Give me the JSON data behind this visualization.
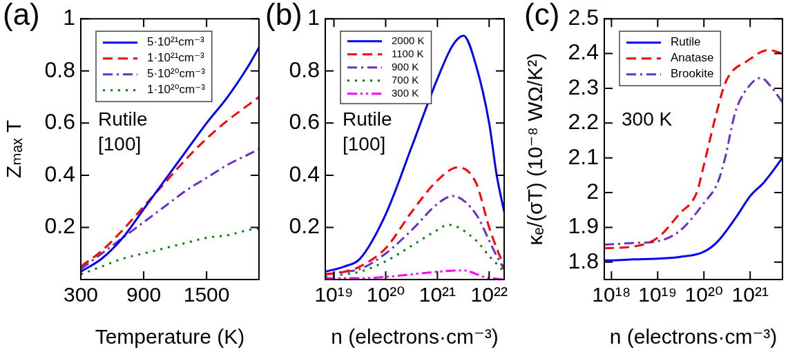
{
  "chart_data": [
    {
      "type": "line",
      "title": "(a)",
      "xlabel": "Temperature (K)",
      "ylabel": "Zₘₐₓ T",
      "annotations": [
        "Rutile",
        "[100]"
      ],
      "legend": "top left",
      "x": [
        300,
        500,
        700,
        900,
        1100,
        1300,
        1500,
        1700,
        1900,
        2000
      ],
      "series": [
        {
          "name": "5·10²¹cm⁻³",
          "color": "#0000ff",
          "line_style": "solid",
          "values": [
            0.03,
            0.08,
            0.16,
            0.27,
            0.38,
            0.49,
            0.6,
            0.7,
            0.82,
            0.89
          ]
        },
        {
          "name": "1·10²¹cm⁻³",
          "color": "#ff0000",
          "line_style": "dashed",
          "values": [
            0.05,
            0.11,
            0.19,
            0.28,
            0.37,
            0.46,
            0.54,
            0.61,
            0.67,
            0.7
          ]
        },
        {
          "name": "5·10²⁰cm⁻³",
          "color": "#6a2fc4",
          "line_style": "dashdot",
          "values": [
            0.04,
            0.1,
            0.16,
            0.22,
            0.28,
            0.34,
            0.39,
            0.44,
            0.48,
            0.5
          ]
        },
        {
          "name": "1·10²⁰cm⁻³",
          "color": "#008000",
          "line_style": "dotted",
          "values": [
            0.02,
            0.05,
            0.08,
            0.1,
            0.12,
            0.14,
            0.16,
            0.17,
            0.19,
            0.195
          ]
        }
      ],
      "xlim": [
        300,
        2000
      ],
      "xticks": [
        300,
        900,
        1500
      ],
      "ylim": [
        0,
        1
      ],
      "yticks": [
        0.2,
        0.4,
        0.6,
        0.8,
        1
      ]
    },
    {
      "type": "line",
      "title": "(b)",
      "xlabel": "n (electrons·cm⁻³)",
      "annotations": [
        "Rutile",
        "[100]"
      ],
      "legend": "top left",
      "log": "x",
      "series": [
        {
          "name": "2000 K",
          "color": "#0000ff",
          "line_style": "solid",
          "x": [
            6.8e+18,
            1.6e+19,
            3.2e+19,
            1e+20,
            3.2e+20,
            1e+21,
            2e+21,
            3.2e+21,
            5.6e+21,
            1e+22,
            1.4e+22,
            1.95e+22
          ],
          "values": [
            0.03,
            0.05,
            0.08,
            0.25,
            0.51,
            0.77,
            0.9,
            0.935,
            0.82,
            0.6,
            0.4,
            0.26
          ]
        },
        {
          "name": "1100 K",
          "color": "#ff0000",
          "line_style": "dashed",
          "x": [
            6.8e+18,
            1.6e+19,
            3.2e+19,
            1e+20,
            3.2e+20,
            1e+21,
            2.5e+21,
            5.6e+21,
            1e+22,
            1.4e+22,
            1.95e+22
          ],
          "values": [
            0.02,
            0.03,
            0.05,
            0.12,
            0.26,
            0.38,
            0.43,
            0.37,
            0.2,
            0.12,
            0.05
          ]
        },
        {
          "name": "900 K",
          "color": "#6a2fc4",
          "line_style": "dashdot",
          "x": [
            6.8e+18,
            1.6e+19,
            3.2e+19,
            1e+20,
            3.2e+20,
            1e+21,
            2e+21,
            5.6e+21,
            1e+22,
            1.4e+22,
            1.95e+22
          ],
          "values": [
            0.02,
            0.03,
            0.04,
            0.1,
            0.19,
            0.29,
            0.32,
            0.25,
            0.15,
            0.09,
            0.04
          ]
        },
        {
          "name": "700 K",
          "color": "#008000",
          "line_style": "dotted",
          "x": [
            6.8e+18,
            1.6e+19,
            3.2e+19,
            1e+20,
            3.2e+20,
            1e+21,
            1.6e+21,
            5.6e+21,
            1e+22,
            1.4e+22,
            1.95e+22
          ],
          "values": [
            0.01,
            0.02,
            0.03,
            0.07,
            0.13,
            0.19,
            0.21,
            0.15,
            0.09,
            0.06,
            0.03
          ]
        },
        {
          "name": "300 K",
          "color": "#ff00ff",
          "line_style": "dashdotdot",
          "x": [
            6.8e+18,
            3.2e+19,
            1e+20,
            3.2e+20,
            1e+21,
            3.2e+21,
            8e+21,
            1.95e+22
          ],
          "values": [
            0.005,
            0.005,
            0.01,
            0.02,
            0.03,
            0.035,
            0.01,
            0
          ]
        }
      ],
      "xlim": [
        6.8e+18,
        1.95e+22
      ],
      "xticks": [
        {
          "value": 1e+19,
          "label": "10¹⁹"
        },
        {
          "value": 1e+20,
          "label": "10²⁰"
        },
        {
          "value": 1e+21,
          "label": "10²¹"
        },
        {
          "value": 1e+22,
          "label": "10²²"
        }
      ],
      "ylim": [
        0,
        1
      ],
      "yticks": [
        0.2,
        0.4,
        0.6,
        0.8,
        1
      ]
    },
    {
      "type": "line",
      "title": "(c)",
      "xlabel": "n (electrons·cm⁻³)",
      "ylabel": "κₑ/(σT) (10⁻⁸ WΩ/K²)",
      "annotations": [
        "300 K"
      ],
      "legend": "top left",
      "log": "x",
      "series": [
        {
          "name": "Rutile",
          "color": "#0000ff",
          "line_style": "solid",
          "x": [
            7e+17,
            1e+18,
            3e+18,
            1e+19,
            3e+19,
            1e+20,
            2e+20,
            5e+20,
            1e+21,
            2e+21,
            5e+21
          ],
          "values": [
            1.805,
            1.805,
            1.808,
            1.81,
            1.815,
            1.83,
            1.86,
            1.93,
            1.99,
            2.03,
            2.1
          ]
        },
        {
          "name": "Anatase",
          "color": "#ff0000",
          "line_style": "dashed",
          "x": [
            7e+17,
            3e+18,
            1e+19,
            3e+19,
            7e+19,
            1e+20,
            1.8e+20,
            3e+20,
            9e+20,
            2.5e+21,
            5e+21
          ],
          "values": [
            1.84,
            1.845,
            1.87,
            1.94,
            2.0,
            2.08,
            2.22,
            2.32,
            2.38,
            2.41,
            2.4
          ]
        },
        {
          "name": "Brookite",
          "color": "#6a2fc4",
          "line_style": "dashdot",
          "x": [
            7e+17,
            3e+18,
            1e+19,
            3e+19,
            1e+20,
            2e+20,
            3e+20,
            4e+20,
            5e+20,
            1e+21,
            1.7e+21,
            3e+21,
            5e+21
          ],
          "values": [
            1.85,
            1.855,
            1.86,
            1.89,
            1.97,
            2.03,
            2.11,
            2.19,
            2.24,
            2.31,
            2.33,
            2.3,
            2.26
          ]
        }
      ],
      "xlim": [
        7e+17,
        5e+21
      ],
      "xticks": [
        {
          "value": 1e+18,
          "label": "10¹⁸"
        },
        {
          "value": 1e+19,
          "label": "10¹⁹"
        },
        {
          "value": 1e+20,
          "label": "10²⁰"
        },
        {
          "value": 1e+21,
          "label": "10²¹"
        }
      ],
      "ylim": [
        1.75,
        2.5
      ],
      "yticks": [
        1.8,
        1.9,
        2,
        2.1,
        2.2,
        2.3,
        2.4,
        2.5
      ]
    }
  ]
}
